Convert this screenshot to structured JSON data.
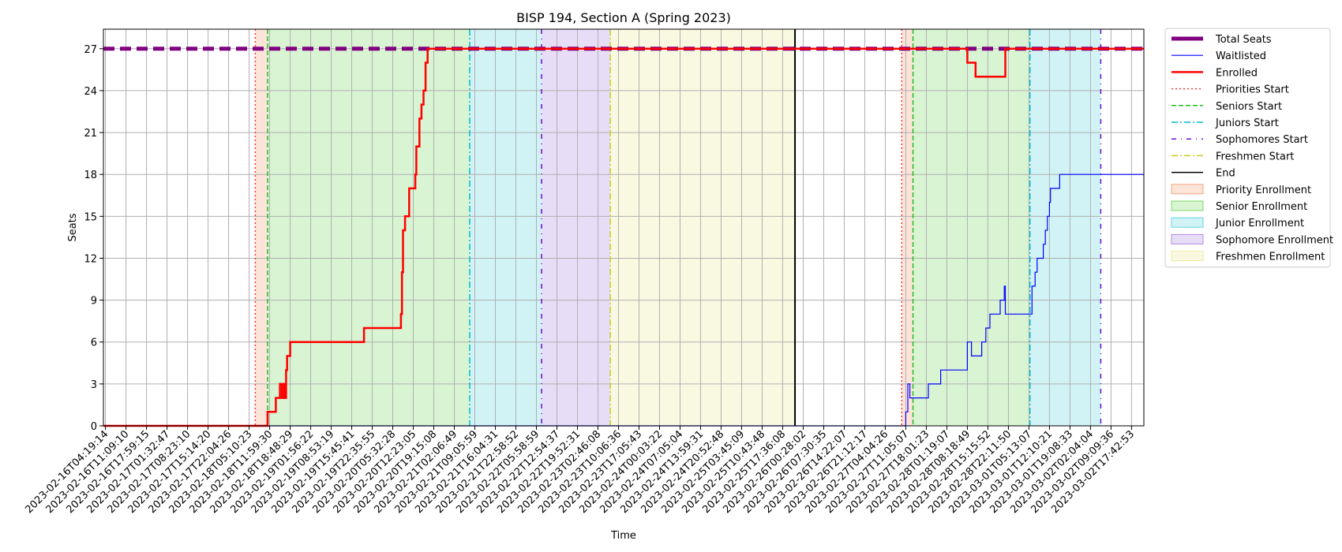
{
  "chart_data": {
    "type": "line",
    "title": "BISP 194, Section A (Spring 2023)",
    "xlabel": "Time",
    "ylabel": "Seats",
    "ylim": [
      0,
      28.4
    ],
    "yticks": [
      0,
      3,
      6,
      9,
      12,
      15,
      18,
      21,
      24,
      27
    ],
    "grid": true,
    "legend_position": "outside-right",
    "x_tick_labels": [
      "2023-02-16T04:19:14",
      "2023-02-16T11:09:10",
      "2023-02-16T17:59:15",
      "2023-02-17T01:32:47",
      "2023-02-17T08:23:10",
      "2023-02-17T15:14:20",
      "2023-02-17T22:04:26",
      "2023-02-18T05:10:23",
      "2023-02-18T11:59:30",
      "2023-02-18T18:48:29",
      "2023-02-19T01:56:22",
      "2023-02-19T08:53:19",
      "2023-02-19T15:45:41",
      "2023-02-19T22:35:55",
      "2023-02-20T05:32:28",
      "2023-02-20T12:23:05",
      "2023-02-20T19:15:08",
      "2023-02-21T02:06:49",
      "2023-02-21T09:05:59",
      "2023-02-21T16:04:31",
      "2023-02-21T22:58:52",
      "2023-02-22T05:58:59",
      "2023-02-22T12:54:37",
      "2023-02-22T19:52:31",
      "2023-02-23T02:46:08",
      "2023-02-23T10:06:36",
      "2023-02-23T17:05:43",
      "2023-02-24T00:03:22",
      "2023-02-24T07:05:04",
      "2023-02-24T13:59:31",
      "2023-02-24T20:52:48",
      "2023-02-25T03:45:09",
      "2023-02-25T10:43:48",
      "2023-02-25T17:36:08",
      "2023-02-26T00:28:02",
      "2023-02-26T07:30:35",
      "2023-02-26T14:22:07",
      "2023-02-26T21:12:17",
      "2023-02-27T04:04:26",
      "2023-02-27T11:05:07",
      "2023-02-27T18:01:23",
      "2023-02-28T01:19:07",
      "2023-02-28T08:18:49",
      "2023-02-28T15:15:52",
      "2023-02-28T22:11:50",
      "2023-03-01T05:13:07",
      "2023-03-01T12:10:21",
      "2023-03-01T19:08:33",
      "2023-03-02T02:04:04",
      "2023-03-02T09:09:36",
      "2023-03-02T17:42:53"
    ],
    "x_range_ticks": [
      -0.1,
      50.6
    ],
    "spans": [
      {
        "name": "Priority Enrollment",
        "from": 7.3,
        "to": 7.9,
        "color": "#f4a582"
      },
      {
        "name": "Senior Enrollment",
        "from": 7.9,
        "to": 17.75,
        "color": "#7ed96a"
      },
      {
        "name": "Junior Enrollment",
        "from": 17.75,
        "to": 21.25,
        "color": "#66d6e0"
      },
      {
        "name": "Sophomore Enrollment",
        "from": 21.25,
        "to": 24.6,
        "color": "#b38ee6"
      },
      {
        "name": "Freshmen Enrollment",
        "from": 24.6,
        "to": 33.6,
        "color": "#ecec9e"
      },
      {
        "name": "Priority Enrollment",
        "from": 38.8,
        "to": 39.35,
        "color": "#f4a582"
      },
      {
        "name": "Senior Enrollment",
        "from": 39.35,
        "to": 45.05,
        "color": "#7ed96a"
      },
      {
        "name": "Junior Enrollment",
        "from": 45.05,
        "to": 48.5,
        "color": "#66d6e0"
      }
    ],
    "vlines": [
      {
        "name": "Priorities Start",
        "x": 7.3,
        "color": "#ff3333",
        "dash": "2,3"
      },
      {
        "name": "Seniors Start",
        "x": 7.9,
        "color": "#22bb22",
        "dash": "6,3"
      },
      {
        "name": "Juniors Start",
        "x": 17.75,
        "color": "#00bbcc",
        "dash": "8,3,2,3"
      },
      {
        "name": "Sophomores Start",
        "x": 21.25,
        "color": "#6a0dcc",
        "dash": "6,6,1,6"
      },
      {
        "name": "Freshmen Start",
        "x": 24.6,
        "color": "#cccc22",
        "dash": "8,3,2,3"
      },
      {
        "name": "End",
        "x": 33.6,
        "color": "#000000",
        "dash": ""
      },
      {
        "name": "Priorities Start",
        "x": 38.8,
        "color": "#ff3333",
        "dash": "2,3"
      },
      {
        "name": "Seniors Start",
        "x": 39.35,
        "color": "#22bb22",
        "dash": "6,3"
      },
      {
        "name": "Juniors Start",
        "x": 45.05,
        "color": "#00bbcc",
        "dash": "8,3,2,3"
      },
      {
        "name": "Sophomores Start",
        "x": 48.5,
        "color": "#6a0dcc",
        "dash": "6,6,1,6"
      }
    ],
    "series": [
      {
        "name": "Total Seats",
        "color": "#800080",
        "width": 5,
        "dash": "14,7",
        "points": [
          [
            -0.1,
            27
          ],
          [
            50.6,
            27
          ]
        ]
      },
      {
        "name": "Waitlisted",
        "color": "#0000ff",
        "width": 1.2,
        "dash": "",
        "points": [
          [
            -0.1,
            0
          ],
          [
            39.0,
            0
          ],
          [
            39.0,
            1
          ],
          [
            39.1,
            1
          ],
          [
            39.1,
            3
          ],
          [
            39.2,
            3
          ],
          [
            39.2,
            2
          ],
          [
            40.1,
            2
          ],
          [
            40.1,
            3
          ],
          [
            40.7,
            3
          ],
          [
            40.7,
            4
          ],
          [
            42.0,
            4
          ],
          [
            42.0,
            6
          ],
          [
            42.2,
            6
          ],
          [
            42.2,
            5
          ],
          [
            42.7,
            5
          ],
          [
            42.7,
            6
          ],
          [
            42.9,
            6
          ],
          [
            42.9,
            7
          ],
          [
            43.1,
            7
          ],
          [
            43.1,
            8
          ],
          [
            43.6,
            8
          ],
          [
            43.6,
            9
          ],
          [
            43.8,
            9
          ],
          [
            43.8,
            10
          ],
          [
            43.85,
            10
          ],
          [
            43.85,
            8
          ],
          [
            45.15,
            8
          ],
          [
            45.15,
            10
          ],
          [
            45.3,
            10
          ],
          [
            45.3,
            11
          ],
          [
            45.4,
            11
          ],
          [
            45.4,
            12
          ],
          [
            45.7,
            12
          ],
          [
            45.7,
            13
          ],
          [
            45.8,
            13
          ],
          [
            45.8,
            14
          ],
          [
            45.9,
            14
          ],
          [
            45.9,
            15
          ],
          [
            46.0,
            15
          ],
          [
            46.0,
            16
          ],
          [
            46.05,
            16
          ],
          [
            46.05,
            17
          ],
          [
            46.5,
            17
          ],
          [
            46.5,
            18
          ],
          [
            50.6,
            18
          ]
        ]
      },
      {
        "name": "Enrolled",
        "color": "#ff0000",
        "width": 2.5,
        "dash": "",
        "points": [
          [
            -0.1,
            0
          ],
          [
            7.9,
            0
          ],
          [
            7.9,
            1
          ],
          [
            8.3,
            1
          ],
          [
            8.3,
            2
          ],
          [
            8.5,
            2
          ],
          [
            8.5,
            3
          ],
          [
            8.6,
            3
          ],
          [
            8.6,
            2
          ],
          [
            8.7,
            2
          ],
          [
            8.7,
            3
          ],
          [
            8.75,
            3
          ],
          [
            8.75,
            2
          ],
          [
            8.8,
            2
          ],
          [
            8.8,
            4
          ],
          [
            8.85,
            4
          ],
          [
            8.85,
            5
          ],
          [
            9.0,
            5
          ],
          [
            9.0,
            6
          ],
          [
            12.6,
            6
          ],
          [
            12.6,
            7
          ],
          [
            14.4,
            7
          ],
          [
            14.4,
            8
          ],
          [
            14.45,
            8
          ],
          [
            14.45,
            11
          ],
          [
            14.5,
            11
          ],
          [
            14.5,
            14
          ],
          [
            14.6,
            14
          ],
          [
            14.6,
            15
          ],
          [
            14.8,
            15
          ],
          [
            14.8,
            17
          ],
          [
            15.1,
            17
          ],
          [
            15.1,
            18
          ],
          [
            15.15,
            18
          ],
          [
            15.15,
            20
          ],
          [
            15.3,
            20
          ],
          [
            15.3,
            22
          ],
          [
            15.4,
            22
          ],
          [
            15.4,
            23
          ],
          [
            15.5,
            23
          ],
          [
            15.5,
            24
          ],
          [
            15.6,
            24
          ],
          [
            15.6,
            26
          ],
          [
            15.7,
            26
          ],
          [
            15.7,
            27
          ],
          [
            42.0,
            27
          ],
          [
            42.0,
            26
          ],
          [
            42.4,
            26
          ],
          [
            42.4,
            25
          ],
          [
            43.85,
            25
          ],
          [
            43.85,
            27
          ],
          [
            50.6,
            27
          ]
        ]
      }
    ],
    "legend": [
      {
        "label": "Total Seats",
        "kind": "line",
        "color": "#800080",
        "width": 5,
        "dash": ""
      },
      {
        "label": "Waitlisted",
        "kind": "line",
        "color": "#0000ff",
        "width": 1.2,
        "dash": ""
      },
      {
        "label": "Enrolled",
        "kind": "line",
        "color": "#ff0000",
        "width": 2.5,
        "dash": ""
      },
      {
        "label": "Priorities Start",
        "kind": "line",
        "color": "#ff3333",
        "width": 1.5,
        "dash": "2,3"
      },
      {
        "label": "Seniors Start",
        "kind": "line",
        "color": "#22bb22",
        "width": 1.5,
        "dash": "6,3"
      },
      {
        "label": "Juniors Start",
        "kind": "line",
        "color": "#00bbcc",
        "width": 1.5,
        "dash": "8,3,2,3"
      },
      {
        "label": "Sophomores Start",
        "kind": "line",
        "color": "#6a0dcc",
        "width": 1.5,
        "dash": "6,6,1,6"
      },
      {
        "label": "Freshmen Start",
        "kind": "line",
        "color": "#cccc22",
        "width": 1.5,
        "dash": "8,3,2,3"
      },
      {
        "label": "End",
        "kind": "line",
        "color": "#000000",
        "width": 1.5,
        "dash": ""
      },
      {
        "label": "Priority Enrollment",
        "kind": "patch",
        "color": "#f4a582"
      },
      {
        "label": "Senior Enrollment",
        "kind": "patch",
        "color": "#7ed96a"
      },
      {
        "label": "Junior Enrollment",
        "kind": "patch",
        "color": "#66d6e0"
      },
      {
        "label": "Sophomore Enrollment",
        "kind": "patch",
        "color": "#b38ee6"
      },
      {
        "label": "Freshmen Enrollment",
        "kind": "patch",
        "color": "#ecec9e"
      }
    ]
  }
}
